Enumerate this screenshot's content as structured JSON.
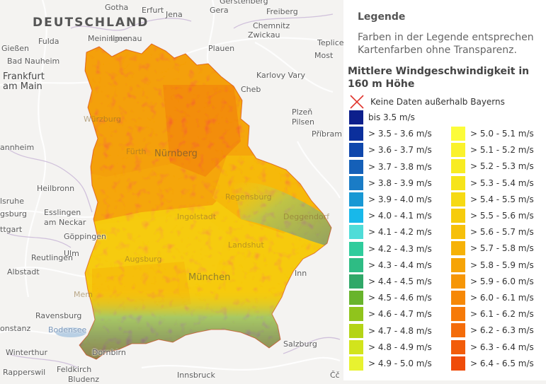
{
  "map": {
    "country_label": "DEUTSCHLAND",
    "places": [
      {
        "id": "gotha",
        "name": "Gotha"
      },
      {
        "id": "erfurt",
        "name": "Erfurt"
      },
      {
        "id": "jena",
        "name": "Jena"
      },
      {
        "id": "gera",
        "name": "Gera"
      },
      {
        "id": "gerstenberg",
        "name": "Gerstenberg"
      },
      {
        "id": "freiberg",
        "name": "Freiberg"
      },
      {
        "id": "chemnitz",
        "name": "Chemnitz"
      },
      {
        "id": "zwickau",
        "name": "Zwickau"
      },
      {
        "id": "fulda",
        "name": "Fulda"
      },
      {
        "id": "meiningen",
        "name": "Meiningen"
      },
      {
        "id": "ilmenau",
        "name": "Ilmenau"
      },
      {
        "id": "plauen",
        "name": "Plauen"
      },
      {
        "id": "giessen",
        "name": "Gießen"
      },
      {
        "id": "badnauheim",
        "name": "Bad Nauheim"
      },
      {
        "id": "frankfurt",
        "name": "Frankfurt\nam Main"
      },
      {
        "id": "karlovyvary",
        "name": "Karlovy Vary"
      },
      {
        "id": "teplice",
        "name": "Teplice"
      },
      {
        "id": "most",
        "name": "Most"
      },
      {
        "id": "cheb",
        "name": "Cheb"
      },
      {
        "id": "plzen",
        "name": "Plzeň"
      },
      {
        "id": "pilsen",
        "name": "Pilsen"
      },
      {
        "id": "pribram",
        "name": "Příbram"
      },
      {
        "id": "mannheim",
        "name": "annheim"
      },
      {
        "id": "heilbronn",
        "name": "Heilbronn"
      },
      {
        "id": "karlsruhe",
        "name": "lsruhe"
      },
      {
        "id": "ludwigsburg",
        "name": "gsburg"
      },
      {
        "id": "esslingen",
        "name": "Esslingen\nam Neckar"
      },
      {
        "id": "stuttgart",
        "name": "ttgart"
      },
      {
        "id": "goppingen",
        "name": "Göppingen"
      },
      {
        "id": "ulm",
        "name": "Ulm"
      },
      {
        "id": "reutlingen",
        "name": "Reutlingen"
      },
      {
        "id": "albstadt",
        "name": "Albstadt"
      },
      {
        "id": "ravensburg",
        "name": "Ravensburg"
      },
      {
        "id": "konstanz",
        "name": "onstanz"
      },
      {
        "id": "bodensee",
        "name": "Bodensee"
      },
      {
        "id": "winterthur",
        "name": "Winterthur"
      },
      {
        "id": "dornbirn",
        "name": "Dornbirn"
      },
      {
        "id": "rapperswil",
        "name": "Rapperswil"
      },
      {
        "id": "feldkirch",
        "name": "Feldkirch"
      },
      {
        "id": "bludenz",
        "name": "Bludenz"
      },
      {
        "id": "innsbruck",
        "name": "Innsbruck"
      },
      {
        "id": "salzburg",
        "name": "Salzburg"
      },
      {
        "id": "memmingen",
        "name": "Mem"
      },
      {
        "id": "inn",
        "name": "Inn"
      },
      {
        "id": "wurzburg",
        "name": "Würzburg"
      },
      {
        "id": "furth",
        "name": "Fürth"
      },
      {
        "id": "nurnberg",
        "name": "Nürnberg"
      },
      {
        "id": "ingolstadt",
        "name": "Ingolstadt"
      },
      {
        "id": "augsburg",
        "name": "Augsburg"
      },
      {
        "id": "munchen",
        "name": "München"
      },
      {
        "id": "landshut",
        "name": "Landshut"
      },
      {
        "id": "regensburg",
        "name": "Regensburg"
      },
      {
        "id": "deggendorf",
        "name": "Deggendorf"
      },
      {
        "id": "cz",
        "name": "Čč"
      }
    ]
  },
  "legend": {
    "heading": "Legende",
    "note": "Farben in der Legende entsprechen Kartenfarben ohne Transparenz.",
    "title": "Mittlere Windgeschwindigkeit in 160 m Höhe",
    "no_data_label": "Keine Daten außerhalb Bayerns",
    "colors": {
      "no_data_x": "#e0342c"
    },
    "classes": [
      {
        "label": "bis 3.5 m/s",
        "color": "#0d1f8c"
      },
      {
        "label": "> 3.5 - 3.6 m/s",
        "color": "#0b2f9c"
      },
      {
        "label": "> 3.6 - 3.7 m/s",
        "color": "#0f47ac"
      },
      {
        "label": "> 3.7 - 3.8 m/s",
        "color": "#1560b8"
      },
      {
        "label": "> 3.8 - 3.9 m/s",
        "color": "#1a7cc6"
      },
      {
        "label": "> 3.9 - 4.0 m/s",
        "color": "#1898d4"
      },
      {
        "label": "> 4.0 - 4.1 m/s",
        "color": "#18b8ea"
      },
      {
        "label": "> 4.1 - 4.2 m/s",
        "color": "#4fdcd8"
      },
      {
        "label": "> 4.2 - 4.3 m/s",
        "color": "#2fcc9c"
      },
      {
        "label": "> 4.3 - 4.4 m/s",
        "color": "#2ebc84"
      },
      {
        "label": "> 4.4 - 4.5 m/s",
        "color": "#30a868"
      },
      {
        "label": "> 4.5 - 4.6 m/s",
        "color": "#68b42c"
      },
      {
        "label": "> 4.6 - 4.7 m/s",
        "color": "#90c41c"
      },
      {
        "label": "> 4.7 - 4.8 m/s",
        "color": "#b4d416"
      },
      {
        "label": "> 4.8 - 4.9 m/s",
        "color": "#d2e41c"
      },
      {
        "label": "> 4.9 - 5.0 m/s",
        "color": "#e8f230"
      },
      {
        "label": "> 5.0 - 5.1 m/s",
        "color": "#fcfc3a"
      },
      {
        "label": "> 5.1 - 5.2 m/s",
        "color": "#faf22c"
      },
      {
        "label": "> 5.2 - 5.3 m/s",
        "color": "#f8ec22"
      },
      {
        "label": "> 5.3 - 5.4 m/s",
        "color": "#f6e41a"
      },
      {
        "label": "> 5.4 - 5.5 m/s",
        "color": "#f6da12"
      },
      {
        "label": "> 5.5 - 5.6 m/s",
        "color": "#f6cc0c"
      },
      {
        "label": "> 5.6 - 5.7 m/s",
        "color": "#f6c00a"
      },
      {
        "label": "> 5.7 - 5.8 m/s",
        "color": "#f6b208"
      },
      {
        "label": "> 5.8 - 5.9 m/s",
        "color": "#f6a406"
      },
      {
        "label": "> 5.9 - 6.0 m/s",
        "color": "#f69606"
      },
      {
        "label": "> 6.0 - 6.1 m/s",
        "color": "#f68806"
      },
      {
        "label": "> 6.1 - 6.2 m/s",
        "color": "#f67a08"
      },
      {
        "label": "> 6.2 - 6.3 m/s",
        "color": "#f46c0a"
      },
      {
        "label": "> 6.3 - 6.4 m/s",
        "color": "#f25c0a"
      },
      {
        "label": "> 6.4 - 6.5 m/s",
        "color": "#ef4c0a"
      }
    ]
  }
}
